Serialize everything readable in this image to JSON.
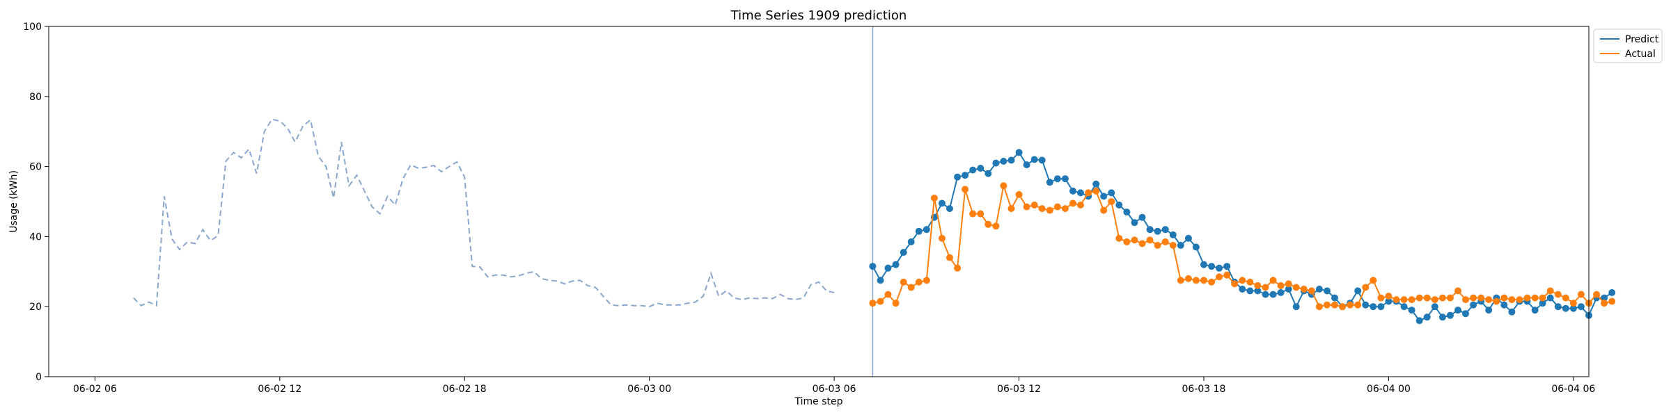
{
  "chart_data": {
    "type": "line",
    "title": "Time Series 1909 prediction",
    "xlabel": "Time step",
    "ylabel": "Usage (kWh)",
    "ylim": [
      0,
      100
    ],
    "yticks": [
      0,
      20,
      40,
      60,
      80,
      100
    ],
    "xlim": [
      -1.5,
      48.5
    ],
    "x_unit": "hours since 06-02 06:00",
    "xticks": [
      {
        "label": "06-02 06",
        "hour": 0
      },
      {
        "label": "06-02 12",
        "hour": 6
      },
      {
        "label": "06-02 18",
        "hour": 12
      },
      {
        "label": "06-03 00",
        "hour": 18
      },
      {
        "label": "06-03 06",
        "hour": 24
      },
      {
        "label": "06-03 12",
        "hour": 30
      },
      {
        "label": "06-03 18",
        "hour": 36
      },
      {
        "label": "06-04 00",
        "hour": 42
      },
      {
        "label": "06-04 06",
        "hour": 48
      }
    ],
    "forecast_start_hour": 25.25,
    "legend": {
      "placement": "top-right, outside plot",
      "entries": [
        "Predict",
        "Actual"
      ]
    },
    "colors": {
      "predict": "#1f77b4",
      "actual": "#ff7f0e",
      "history": "#8aa6cc",
      "divider": "#8aa6cc"
    },
    "history": {
      "start_hour": 1.25,
      "step_hours": 0.25,
      "values": [
        22.5,
        20.3,
        21.3,
        20.3,
        51.5,
        39.3,
        36.3,
        38.5,
        38.0,
        42.0,
        38.8,
        40.3,
        61.5,
        64.0,
        62.5,
        65.0,
        58.0,
        70.0,
        73.5,
        73.0,
        71.0,
        67.0,
        71.5,
        73.3,
        63.0,
        60.0,
        51.0,
        67.0,
        54.5,
        57.5,
        53.0,
        48.5,
        46.5,
        51.5,
        49.0,
        56.5,
        60.5,
        59.5,
        59.8,
        60.3,
        58.5,
        60.0,
        61.3,
        57.0,
        31.5,
        31.3,
        28.5,
        29.0,
        29.0,
        28.5,
        28.8,
        29.5,
        30.0,
        28.0,
        27.5,
        27.3,
        26.5,
        27.3,
        27.5,
        26.0,
        25.5,
        23.0,
        20.5,
        20.3,
        20.5,
        20.3,
        20.3,
        20.0,
        21.0,
        20.5,
        20.5,
        20.5,
        21.0,
        21.3,
        23.0,
        29.5,
        23.0,
        24.5,
        22.5,
        22.0,
        22.5,
        22.3,
        22.5,
        22.3,
        23.5,
        22.3,
        22.0,
        22.5,
        26.3,
        27.0,
        24.5,
        24.0
      ]
    },
    "series": [
      {
        "name": "Predict",
        "start_hour": 25.25,
        "step_hours": 0.25,
        "values": [
          31.5,
          27.5,
          31.0,
          32.0,
          35.5,
          38.5,
          41.5,
          42.0,
          45.5,
          49.5,
          48.0,
          57.0,
          57.5,
          59.0,
          59.5,
          58.0,
          61.0,
          61.5,
          61.8,
          64.0,
          60.5,
          62.0,
          61.8,
          55.5,
          56.5,
          56.5,
          53.0,
          52.5,
          51.5,
          55.0,
          51.5,
          52.5,
          49.0,
          47.0,
          44.0,
          45.5,
          42.0,
          41.5,
          42.0,
          40.5,
          37.5,
          39.5,
          37.0,
          32.0,
          31.5,
          31.0,
          31.5,
          27.0,
          25.0,
          24.5,
          24.5,
          23.5,
          23.5,
          24.0,
          25.0,
          20.0,
          24.5,
          23.5,
          25.0,
          24.5,
          22.5,
          20.0,
          21.0,
          24.5,
          20.5,
          20.0,
          20.0,
          21.5,
          21.5,
          20.0,
          19.0,
          16.0,
          17.0,
          20.0,
          17.0,
          17.5,
          19.0,
          18.0,
          20.5,
          21.5,
          19.0,
          22.5,
          20.5,
          18.5,
          21.5,
          21.5,
          19.0,
          21.0,
          22.5,
          20.0,
          19.5,
          19.5,
          20.0,
          17.5,
          22.5,
          22.5,
          24.0
        ]
      },
      {
        "name": "Actual",
        "start_hour": 25.25,
        "step_hours": 0.25,
        "values": [
          21.0,
          21.5,
          23.5,
          21.0,
          27.0,
          25.5,
          27.0,
          27.5,
          51.0,
          39.5,
          34.0,
          31.0,
          53.5,
          46.5,
          46.5,
          43.5,
          43.0,
          54.5,
          48.0,
          52.0,
          48.5,
          49.0,
          48.0,
          47.5,
          48.5,
          48.0,
          49.5,
          49.0,
          52.5,
          53.0,
          47.5,
          50.0,
          39.5,
          38.5,
          39.0,
          38.0,
          39.0,
          37.5,
          38.5,
          37.5,
          27.5,
          28.0,
          27.5,
          27.5,
          27.0,
          28.5,
          29.0,
          26.5,
          27.5,
          27.0,
          26.0,
          25.5,
          27.5,
          26.0,
          26.5,
          25.5,
          25.0,
          24.5,
          20.0,
          20.5,
          20.5,
          20.0,
          20.5,
          20.5,
          25.5,
          27.5,
          22.5,
          23.0,
          22.0,
          22.0,
          22.0,
          22.5,
          22.5,
          22.0,
          22.5,
          22.5,
          24.5,
          22.0,
          22.5,
          22.5,
          22.0,
          21.5,
          22.5,
          22.0,
          22.0,
          22.5,
          22.5,
          22.5,
          24.5,
          23.5,
          22.5,
          21.0,
          23.5,
          21.0,
          23.5,
          21.0,
          21.5
        ]
      }
    ]
  }
}
